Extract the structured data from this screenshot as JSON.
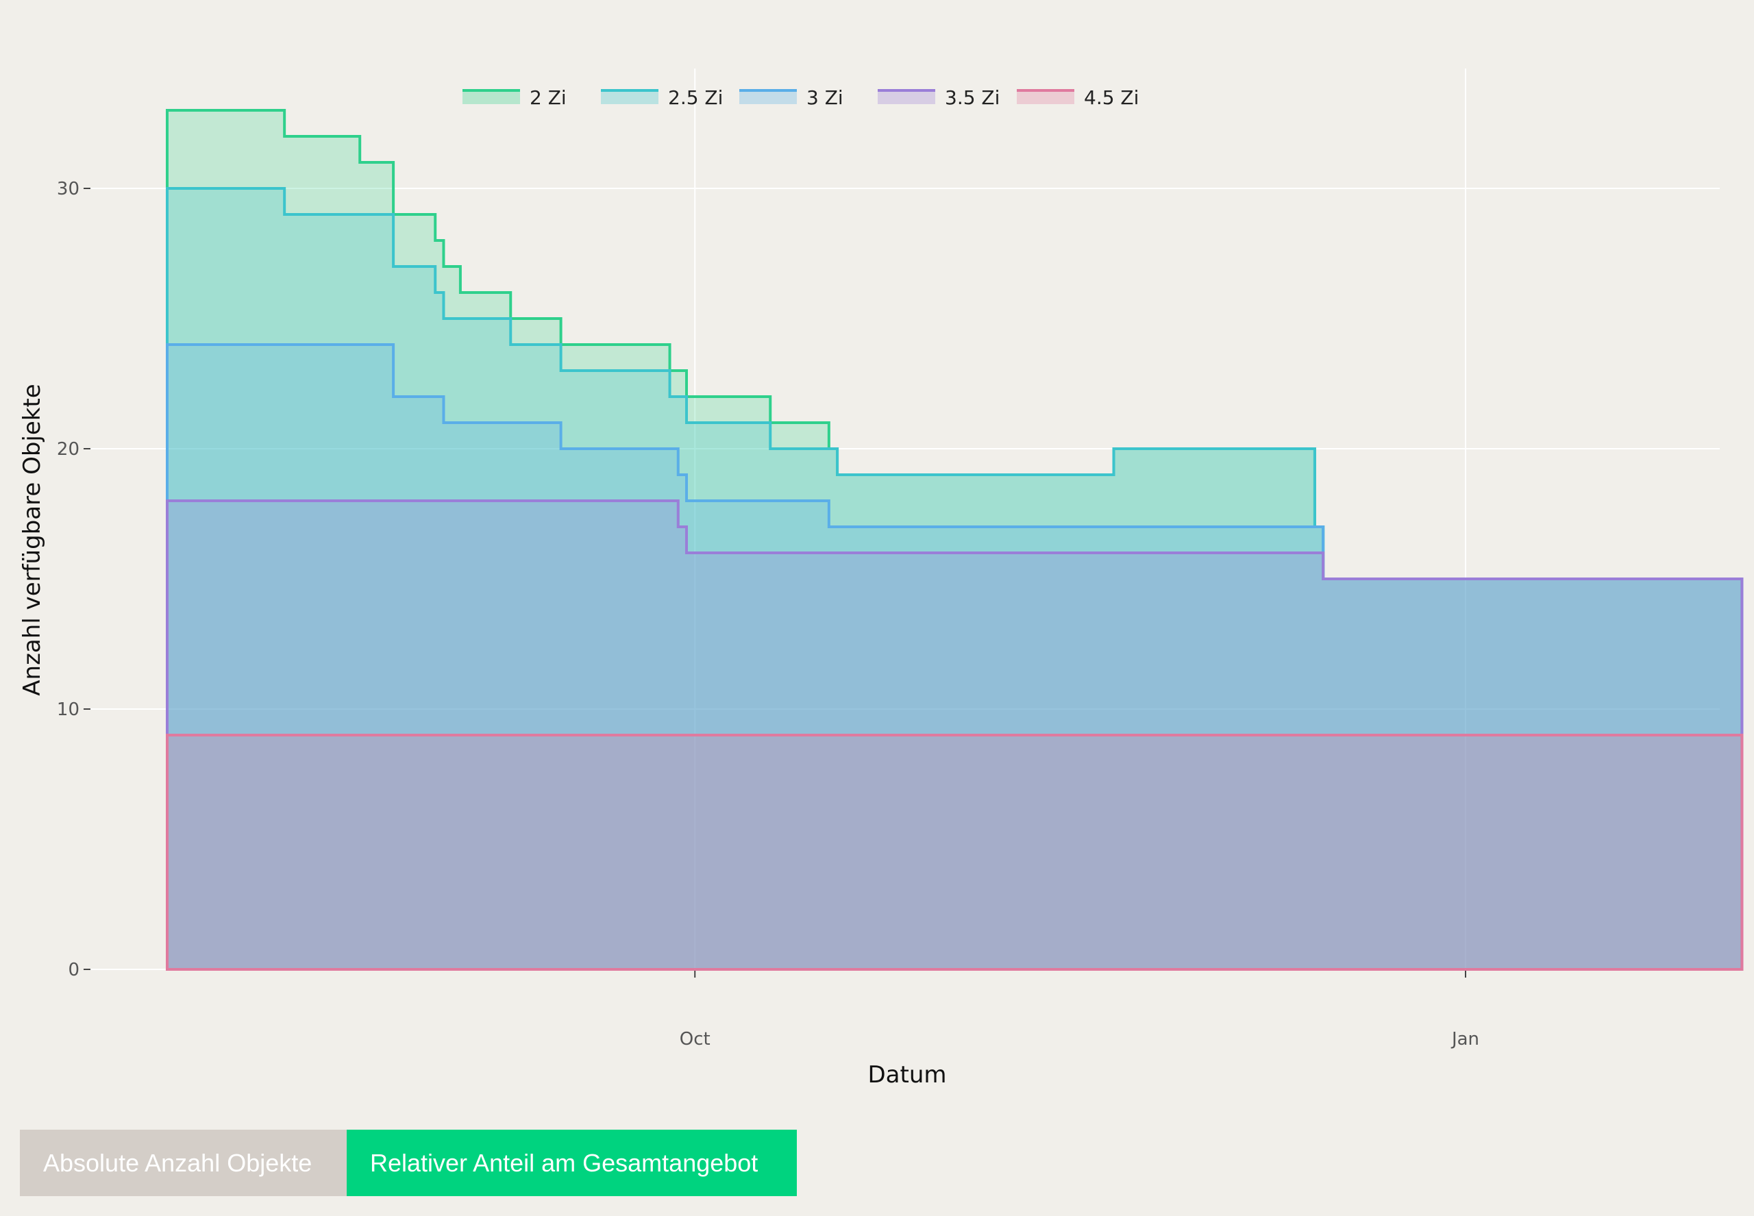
{
  "chart_data": {
    "type": "area",
    "step": true,
    "stacked": true,
    "xlabel": "Datum",
    "ylabel": "Anzahl verfügbare Objekte",
    "x_ticks": [
      "Oct",
      "Jan"
    ],
    "y_ticks": [
      0,
      10,
      20,
      30
    ],
    "ylim": [
      0,
      34.6
    ],
    "legend_position": "top",
    "grid": true,
    "series": [
      {
        "name": "2 Zi",
        "color": "#2fd08c",
        "points": [
          [
            "Jul 30",
            33
          ],
          [
            "Aug 13",
            32
          ],
          [
            "Aug 22",
            31
          ],
          [
            "Aug 26",
            29
          ],
          [
            "Aug 31",
            28
          ],
          [
            "Sep 1",
            27
          ],
          [
            "Sep 3",
            26
          ],
          [
            "Sep 9",
            25
          ],
          [
            "Sep 15",
            24
          ],
          [
            "Sep 28",
            23
          ],
          [
            "Sep 30",
            22
          ],
          [
            "Oct 10",
            21
          ],
          [
            "Oct 17",
            20
          ],
          [
            "Oct 18",
            19
          ],
          [
            "Nov 20",
            20
          ],
          [
            "Dec 14",
            17
          ],
          [
            "Dec 15",
            15
          ],
          [
            "Feb 3",
            15
          ]
        ]
      },
      {
        "name": "2.5 Zi",
        "color": "#3cc4cc",
        "points": [
          [
            "Jul 30",
            30
          ],
          [
            "Aug 13",
            29
          ],
          [
            "Aug 26",
            27
          ],
          [
            "Aug 31",
            26
          ],
          [
            "Sep 1",
            25
          ],
          [
            "Sep 9",
            24
          ],
          [
            "Sep 15",
            23
          ],
          [
            "Sep 28",
            22
          ],
          [
            "Sep 30",
            21
          ],
          [
            "Oct 10",
            20
          ],
          [
            "Oct 18",
            19
          ],
          [
            "Nov 20",
            20
          ],
          [
            "Dec 14",
            17
          ],
          [
            "Dec 15",
            15
          ],
          [
            "Feb 3",
            15
          ]
        ]
      },
      {
        "name": "3 Zi",
        "color": "#5aaee8",
        "points": [
          [
            "Jul 30",
            24
          ],
          [
            "Aug 26",
            22
          ],
          [
            "Sep 1",
            21
          ],
          [
            "Sep 15",
            20
          ],
          [
            "Sep 29",
            19
          ],
          [
            "Sep 30",
            18
          ],
          [
            "Oct 17",
            17
          ],
          [
            "Dec 15",
            15
          ],
          [
            "Feb 3",
            15
          ]
        ]
      },
      {
        "name": "3.5 Zi",
        "color": "#9a7ed8",
        "points": [
          [
            "Jul 30",
            18
          ],
          [
            "Sep 29",
            17
          ],
          [
            "Sep 30",
            16
          ],
          [
            "Dec 15",
            15
          ],
          [
            "Feb 3",
            15
          ]
        ]
      },
      {
        "name": "4.5 Zi",
        "color": "#e07a9e",
        "points": [
          [
            "Jul 30",
            9
          ],
          [
            "Feb 3",
            9
          ]
        ]
      }
    ]
  },
  "buttons": {
    "absolute_label": "Absolute Anzahl Objekte",
    "relative_label": "Relativer Anteil am Gesamtangebot"
  }
}
